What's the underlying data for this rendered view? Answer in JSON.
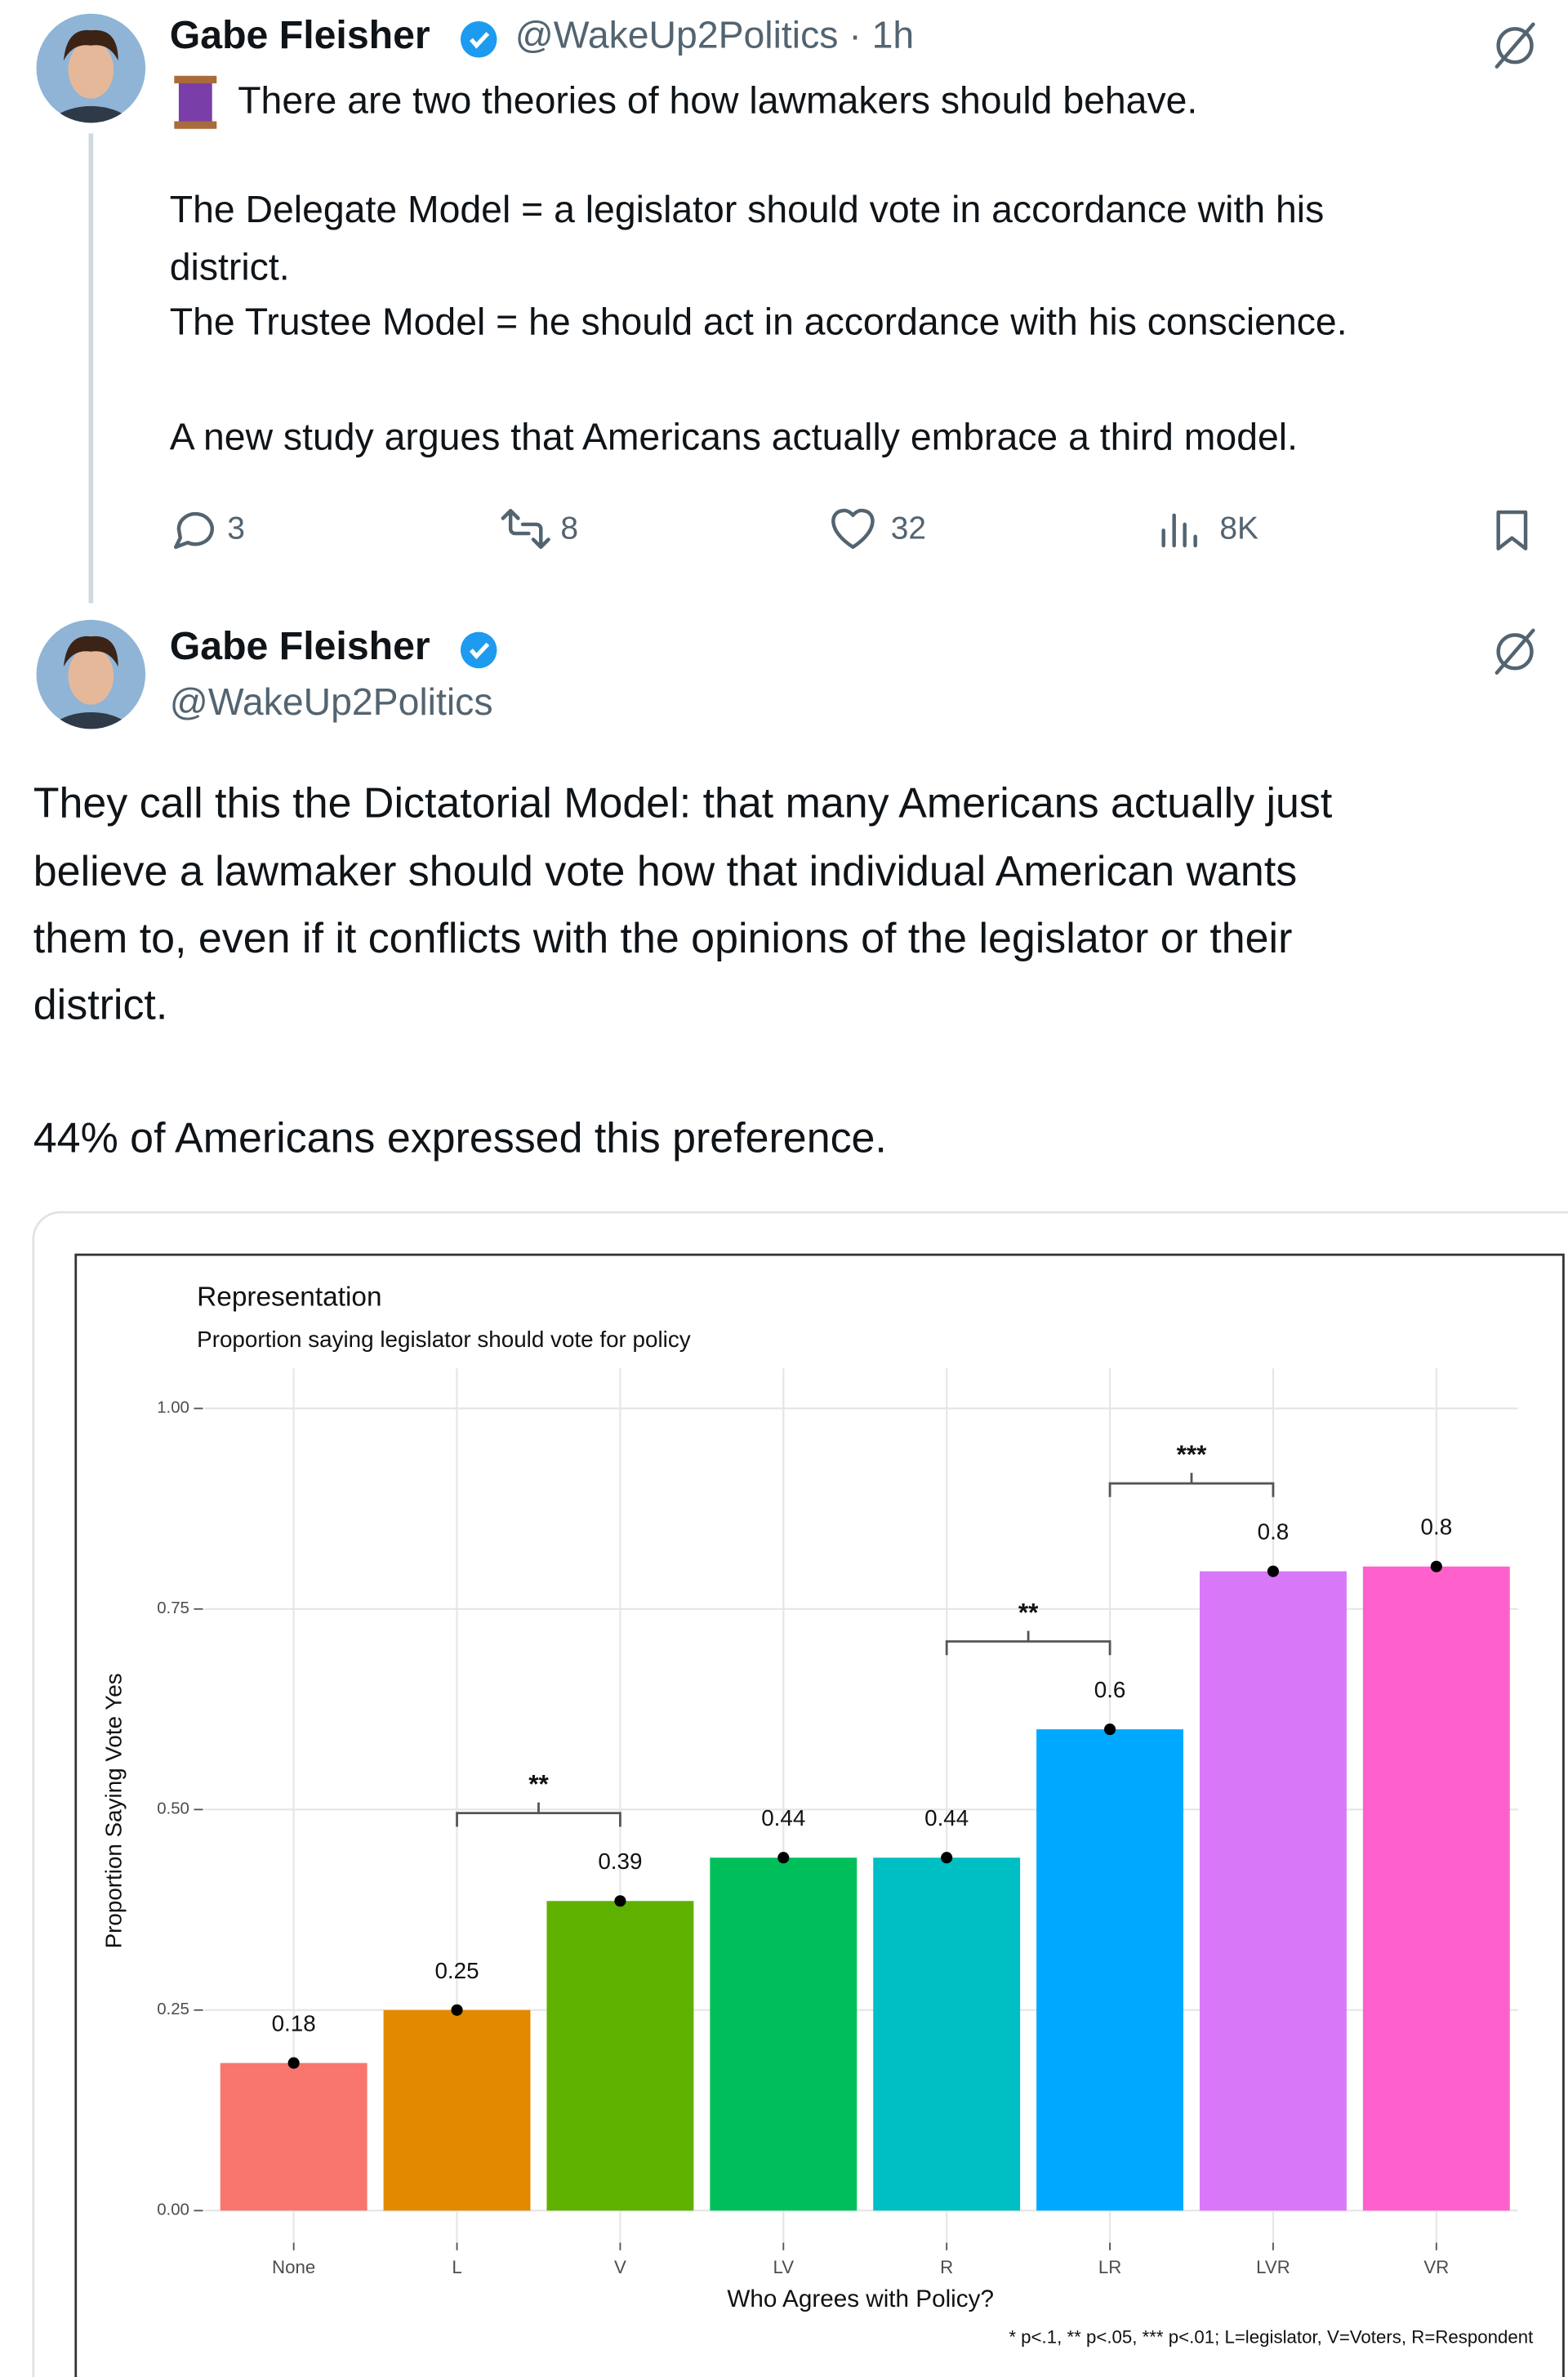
{
  "tweets": [
    {
      "name": "Gabe Fleisher",
      "handle_line": "@WakeUp2Politics · 1h",
      "lines": [
        "There are two theories of how lawmakers should behave.",
        "The Delegate Model = a legislator should vote in accordance with his",
        "district.",
        "The Trustee Model = he should act in accordance with his conscience.",
        "A new study argues that Americans actually embrace a third model."
      ],
      "replies": "3",
      "reposts": "8",
      "likes": "32",
      "views": "8K"
    },
    {
      "name": "Gabe Fleisher",
      "handle_line": "@WakeUp2Politics",
      "lines": [
        "They call this the Dictatorial Model: that many Americans actually just",
        "believe a lawmaker should vote how that individual American wants",
        "them to, even if it conflicts with the opinions of the legislator or their",
        "district.",
        "44% of Americans expressed this preference."
      ]
    }
  ],
  "chart_data": {
    "type": "bar",
    "title": "Representation",
    "subtitle": "Proportion saying legislator should vote for policy",
    "x_label": "Who Agrees with Policy?",
    "y_label": "Proportion Saying Vote Yes",
    "footnote": "* p<.1, ** p<.05, *** p<.01; L=legislator, V=Voters, R=Respondent",
    "categories": [
      "None",
      "L",
      "V",
      "LV",
      "R",
      "LR",
      "LVR",
      "VR"
    ],
    "values": [
      0.184,
      0.25,
      0.386,
      0.44,
      0.44,
      0.6,
      0.797,
      0.803
    ],
    "value_labels": [
      "0.18",
      "0.25",
      "0.39",
      "0.44",
      "0.44",
      "0.6",
      "0.8",
      "0.8"
    ],
    "colors": [
      "#f8766d",
      "#e38900",
      "#5fb100",
      "#00bf5a",
      "#00bfc4",
      "#00a9ff",
      "#d877f8",
      "#ff61cc"
    ],
    "ylim": [
      -0.04,
      1.05
    ],
    "yticks": [
      {
        "value": 0,
        "label": "0.00"
      },
      {
        "value": 0.25,
        "label": "0.25"
      },
      {
        "value": 0.5,
        "label": "0.50"
      },
      {
        "value": 0.75,
        "label": "0.75"
      },
      {
        "value": 1,
        "label": "1.00"
      }
    ],
    "grid": true,
    "annotations": [
      {
        "text": "**",
        "from": "L",
        "to": "V"
      },
      {
        "text": "**",
        "from": "R",
        "to": "LR"
      },
      {
        "text": "***",
        "from": "LR",
        "to": "LVR"
      }
    ]
  }
}
